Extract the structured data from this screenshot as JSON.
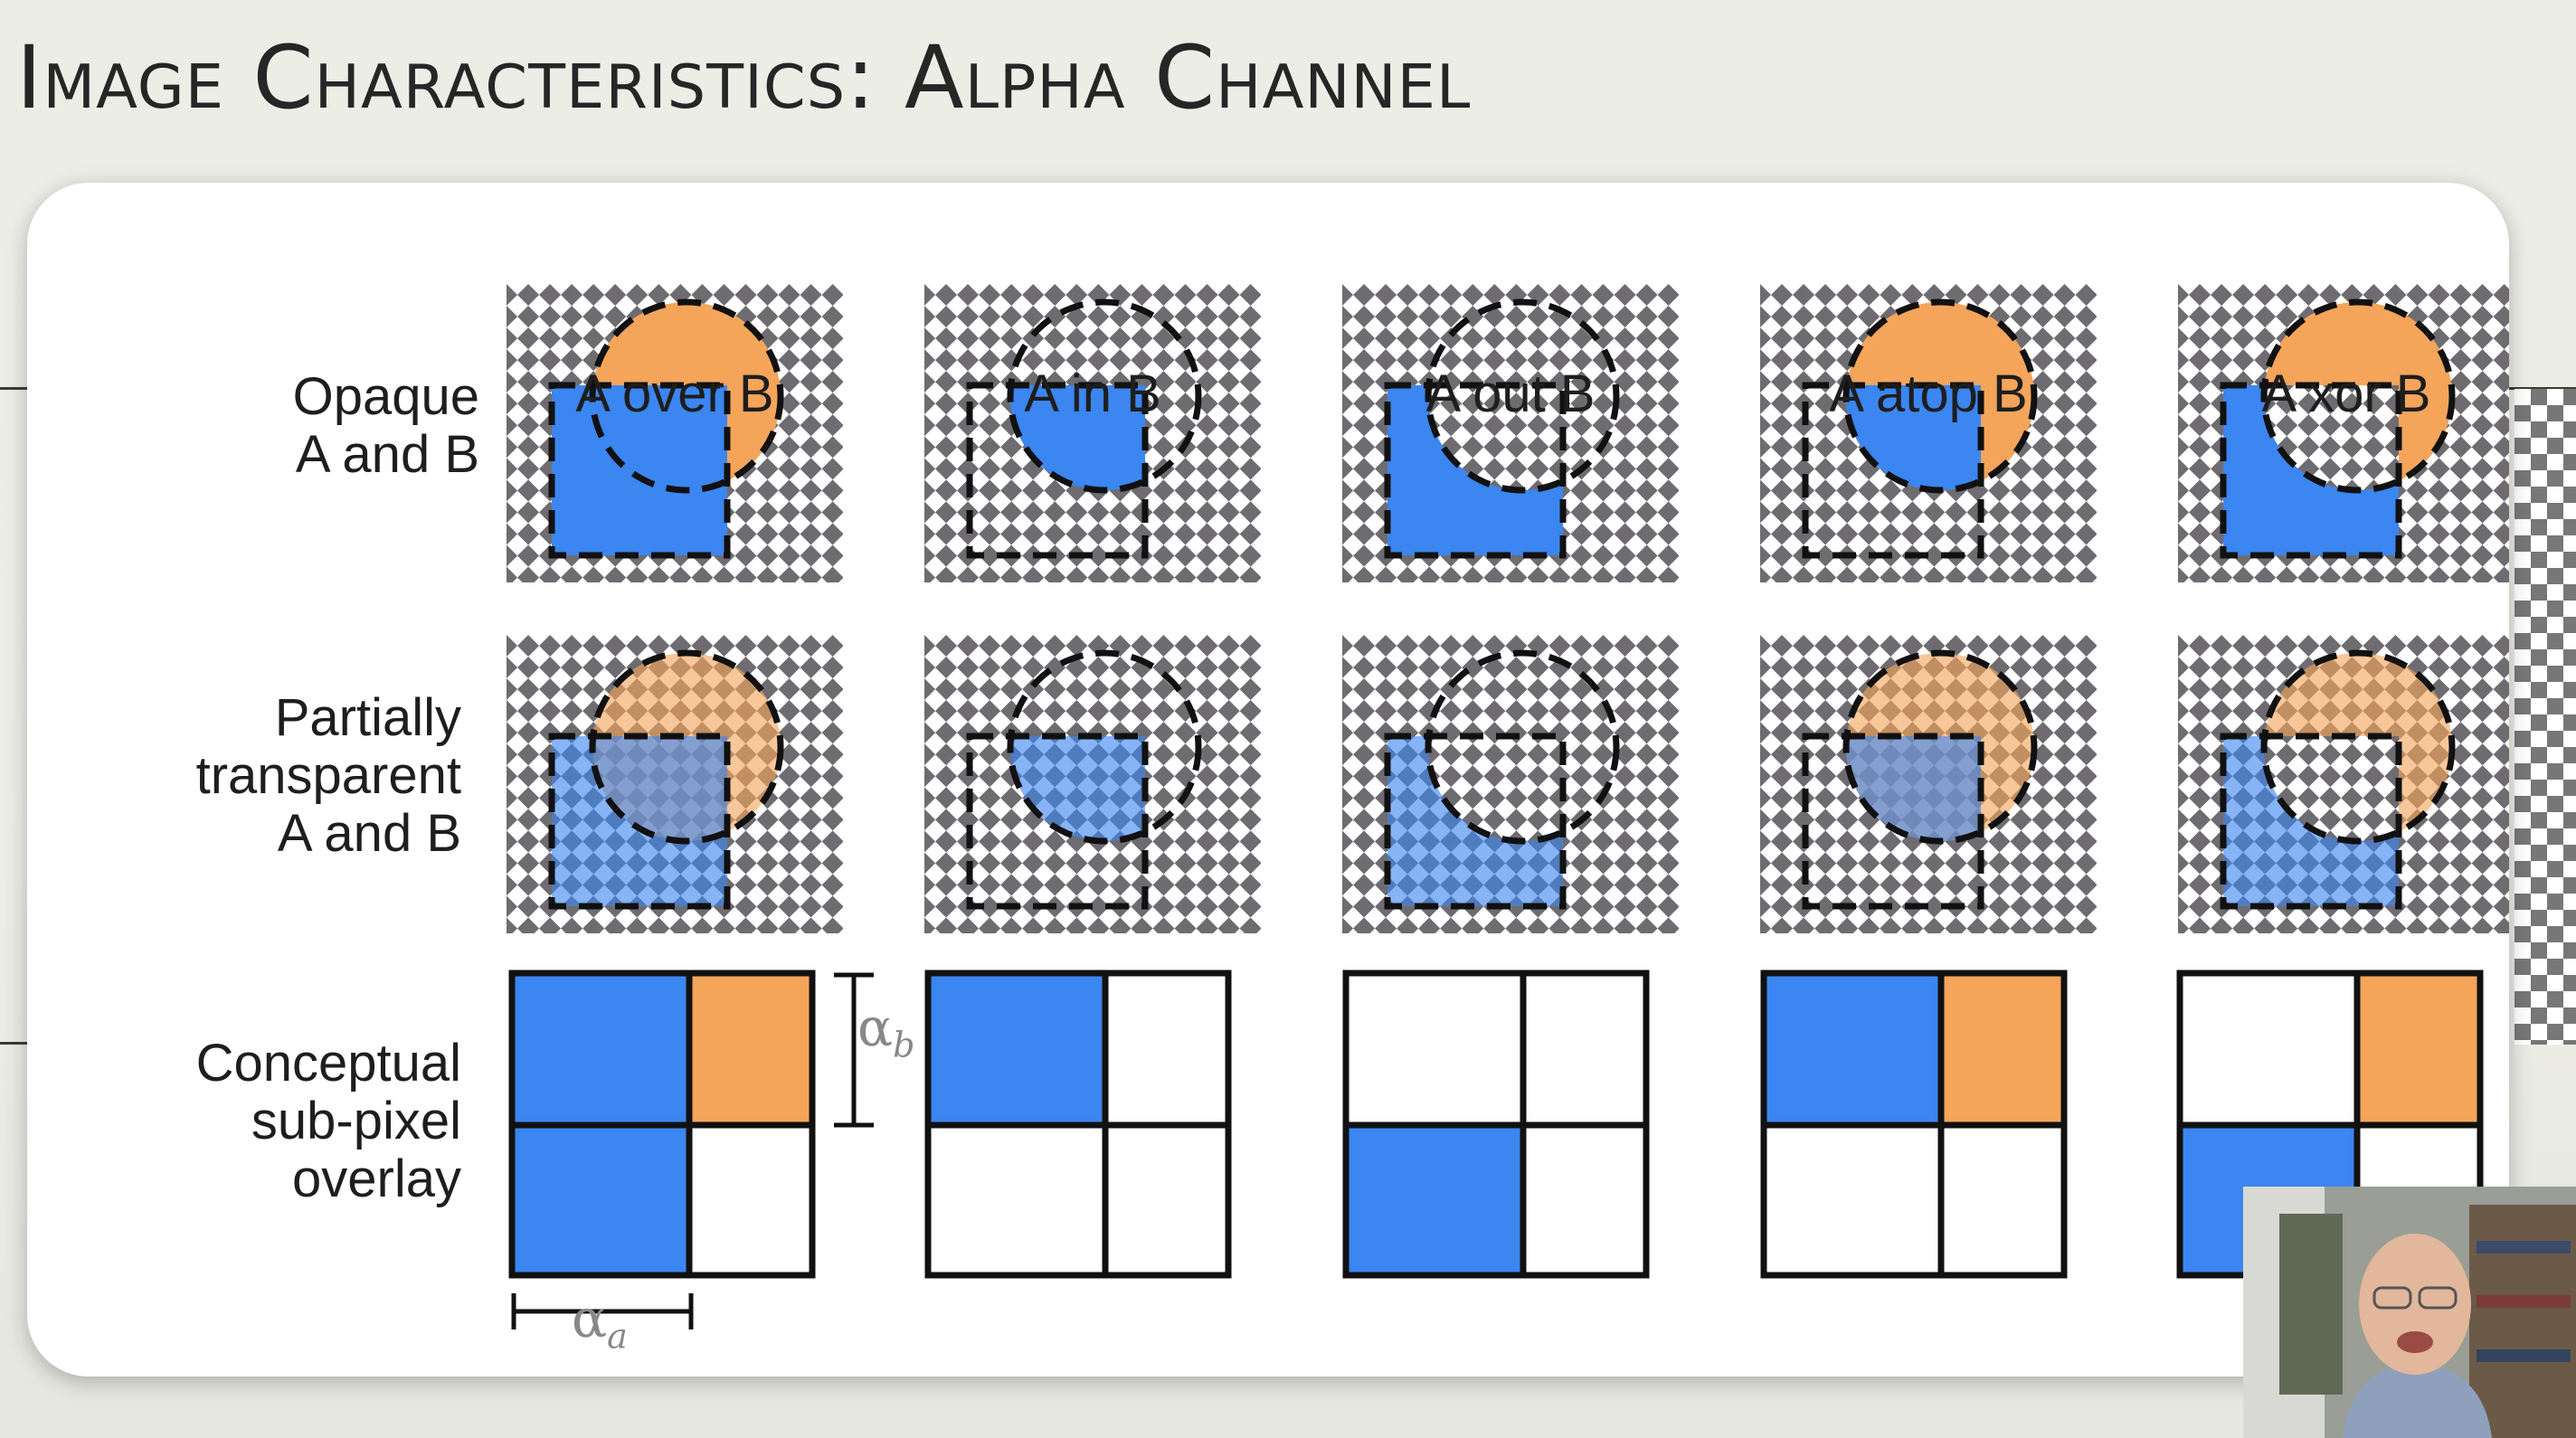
{
  "slide": {
    "title": "Image Characteristics: Alpha Channel"
  },
  "diagram": {
    "columns": [
      "A over B",
      "A in B",
      "A out B",
      "A atop B",
      "A xor B"
    ],
    "rows": [
      {
        "label": "Opaque\nA and B"
      },
      {
        "label": "Partially\ntransparent\nA and B"
      },
      {
        "label": "Conceptual\nsub-pixel\noverlay"
      }
    ],
    "alpha_a_symbol": "α",
    "alpha_a_sub": "a",
    "alpha_b_symbol": "α",
    "alpha_b_sub": "b"
  },
  "colors": {
    "blue": "#3b86f0",
    "orange": "#f4a55a",
    "checker_dark": "#6e6c70",
    "checker_light": "#ffffff"
  },
  "webcam": {
    "icon": "presenter-video-icon"
  }
}
